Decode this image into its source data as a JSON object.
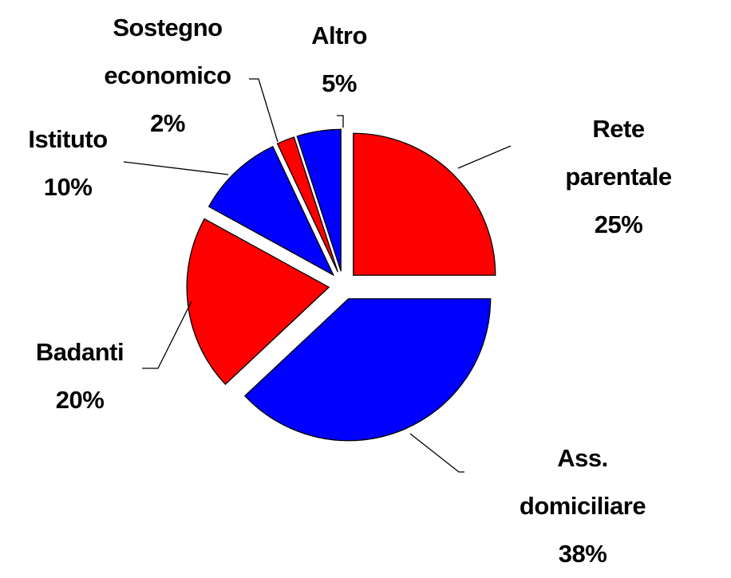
{
  "chart_data": {
    "type": "pie",
    "categories": [
      "Rete parentale",
      "Ass. domiciliare",
      "Badanti",
      "Istituto",
      "Sostegno economico",
      "Altro"
    ],
    "values": [
      25,
      38,
      20,
      10,
      2,
      5
    ],
    "value_labels": [
      "25%",
      "38%",
      "20%",
      "10%",
      "2%",
      "5%"
    ],
    "colors": [
      "#ff0000",
      "#0000ff",
      "#ff0000",
      "#0000ff",
      "#ff0000",
      "#0000ff"
    ]
  }
}
